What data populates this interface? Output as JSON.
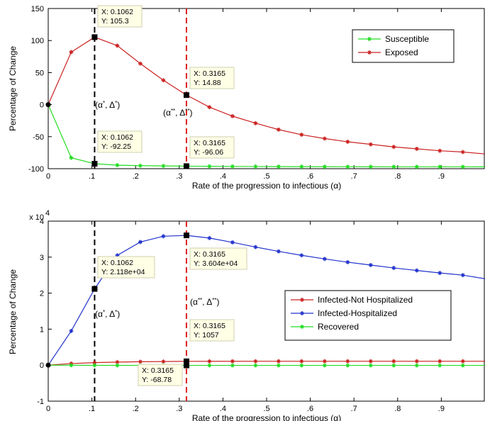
{
  "chart_data": [
    {
      "type": "line",
      "xlabel": "Rate of the progression to infectious (α)",
      "ylabel": "Percentage of Change",
      "xlim": [
        0,
        1
      ],
      "ylim": [
        -100,
        150
      ],
      "xticks": [
        0,
        0.1,
        0.2,
        0.3,
        0.4,
        0.5,
        0.6,
        0.7,
        0.8,
        0.9
      ],
      "yticks": [
        -100,
        -50,
        0,
        50,
        100,
        150
      ],
      "x": [
        0,
        0.0527,
        0.1062,
        0.1582,
        0.2109,
        0.2637,
        0.3165,
        0.3692,
        0.4219,
        0.4747,
        0.5274,
        0.5801,
        0.6329,
        0.6856,
        0.7383,
        0.7911,
        0.8438,
        0.8966,
        0.9493,
        1.0
      ],
      "series": [
        {
          "name": "Susceptible",
          "color": "#22dd22",
          "values": [
            0,
            -83,
            -92.25,
            -94.5,
            -95.3,
            -95.7,
            -96.06,
            -96.3,
            -96.5,
            -96.6,
            -96.7,
            -96.8,
            -96.85,
            -96.9,
            -96.95,
            -97.0,
            -97.0,
            -97.05,
            -97.05,
            -97.1
          ]
        },
        {
          "name": "Exposed",
          "color": "#cc2222",
          "values": [
            0,
            82,
            105.3,
            92,
            64,
            38,
            14.88,
            -4,
            -18,
            -29,
            -39,
            -47,
            -53,
            -58,
            -62,
            -66,
            -69,
            -72,
            -74,
            -77
          ]
        }
      ],
      "legend": "top-right",
      "grid": false,
      "vlines": [
        {
          "x": 0.1062,
          "color": "#000000"
        },
        {
          "x": 0.3165,
          "color": "#dd2222"
        }
      ],
      "datatips": [
        {
          "x": 0.1062,
          "y": 105.3,
          "line1": "X: 0.1062",
          "line2": "Y: 105.3"
        },
        {
          "x": 0.3165,
          "y": 14.88,
          "line1": "X: 0.3165",
          "line2": "Y: 14.88"
        },
        {
          "x": 0.1062,
          "y": -92.25,
          "line1": "X: 0.1062",
          "line2": "Y: -92.25"
        },
        {
          "x": 0.3165,
          "y": -96.06,
          "line1": "X: 0.3165",
          "line2": "Y: -96.06"
        }
      ],
      "annotations": [
        {
          "alpha": "α",
          "delta": "Δ",
          "mark": "*"
        },
        {
          "alpha": "α",
          "delta": "Δ",
          "mark": "**"
        }
      ]
    },
    {
      "type": "line",
      "xlabel": "Rate of the progression to infectious (α)",
      "ylabel": "Percentage of Change",
      "xlim": [
        0,
        1
      ],
      "ylim": [
        -10000,
        40000
      ],
      "xticks": [
        0,
        0.1,
        0.2,
        0.3,
        0.4,
        0.5,
        0.6,
        0.7,
        0.8,
        0.9
      ],
      "yticks": [
        -1,
        0,
        1,
        2,
        3,
        4
      ],
      "ytick_multiplier": "x 10",
      "ytick_exponent": "4",
      "x": [
        0,
        0.0527,
        0.1062,
        0.1582,
        0.2109,
        0.2637,
        0.3165,
        0.3692,
        0.4219,
        0.4747,
        0.5274,
        0.5801,
        0.6329,
        0.6856,
        0.7383,
        0.7911,
        0.8438,
        0.8966,
        0.9493,
        1.0
      ],
      "series": [
        {
          "name": "Infected-Not Hospitalized",
          "color": "#cc2222",
          "values": [
            0,
            450,
            700,
            850,
            950,
            1000,
            1057,
            1070,
            1080,
            1085,
            1090,
            1090,
            1090,
            1090,
            1090,
            1090,
            1090,
            1090,
            1090,
            1090
          ]
        },
        {
          "name": "Infected-Hospitalized",
          "color": "#2233cc",
          "values": [
            0,
            9500,
            21180,
            30500,
            34200,
            35800,
            36040,
            35300,
            34100,
            32800,
            31600,
            30500,
            29500,
            28600,
            27800,
            27000,
            26300,
            25600,
            25000,
            24000
          ]
        },
        {
          "name": "Recovered",
          "color": "#22dd22",
          "values": [
            0,
            -40,
            -60,
            -65,
            -67,
            -68,
            -68.78,
            -69,
            -69,
            -69,
            -69,
            -69,
            -69,
            -69,
            -69,
            -69,
            -69,
            -69,
            -69,
            -69
          ]
        }
      ],
      "legend": "center-right",
      "grid": false,
      "vlines": [
        {
          "x": 0.1062,
          "color": "#000000"
        },
        {
          "x": 0.3165,
          "color": "#dd2222"
        }
      ],
      "datatips": [
        {
          "x": 0.1062,
          "y": 21180,
          "line1": "X: 0.1062",
          "line2": "Y: 2.118e+04"
        },
        {
          "x": 0.3165,
          "y": 36040,
          "line1": "X: 0.3165",
          "line2": "Y: 3.604e+04"
        },
        {
          "x": 0.3165,
          "y": 1057,
          "line1": "X: 0.3165",
          "line2": "Y: 1057"
        },
        {
          "x": 0.3165,
          "y": -68.78,
          "line1": "X: 0.3165",
          "line2": "Y: -68.78"
        }
      ],
      "annotations": [
        {
          "alpha": "α",
          "delta": "Δ",
          "mark": "*"
        },
        {
          "alpha": "α",
          "delta": "Δ",
          "mark": "**"
        }
      ]
    }
  ]
}
